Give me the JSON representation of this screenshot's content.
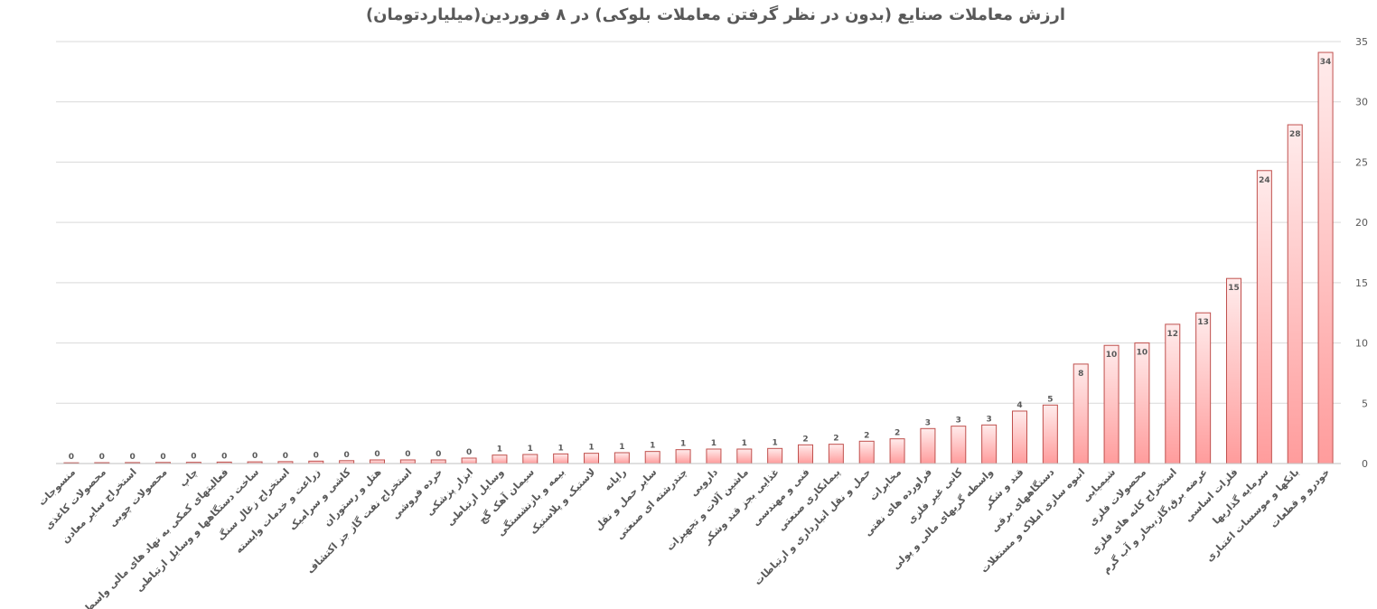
{
  "chart_data": {
    "type": "bar",
    "title": "ارزش معاملات صنایع (بدون در نظر گرفتن معاملات بلوکی) در ۸ فروردین(میلیاردتومان)",
    "ylim": [
      0,
      35
    ],
    "yticks": [
      0,
      5,
      10,
      15,
      20,
      25,
      30,
      35
    ],
    "y_axis_side": "right",
    "grid": true,
    "legend": "none",
    "bar_color": "#ff9c9c",
    "bar_edge_color": "#c0504d",
    "categories": [
      "منسوجات",
      "محصولات کاغذی",
      "استخراج سایر معادن",
      "محصولات چوبی",
      "چاپ",
      "فعالیتهای کمکی به نهاد های مالی واسط",
      "ساخت دستگاهها و وسایل ارتباطی",
      "استخراج زغال سنگ",
      "زراعت و خدمات وابسته",
      "کاشی و سرامیک",
      "هتل و رستوران",
      "استخراج نفت گاز جز اکتشاف",
      "خرده فروشی",
      "ابزار پزشکی",
      "وسایل ارتباطی",
      "سیمان آهک گچ",
      "بیمه و بازنشستگی",
      "لاستیک و پلاستیک",
      "رایانه",
      "سایر حمل و نقل",
      "چندرشته ای صنعتی",
      "دارویی",
      "ماشین آلات و تجهیزات",
      "غذایی بجز قند وشکر",
      "فنی و مهندسی",
      "پیمانکاری صنعتی",
      "حمل و نقل انبارداری و ارتباطات",
      "مخابرات",
      "فراورده های نفتی",
      "کانی غیر فلزی",
      "واسطه گریهای مالی و پولی",
      "قند و شکر",
      "دستگاههای برقی",
      "انبوه سازی املاک و مستغلات",
      "شیمیایی",
      "محصولات فلزی",
      "استخراج کانه های فلزی",
      "عرضه برق،گاز،بخار و آب گرم",
      "فلزات اساسی",
      "سرمایه گذاریها",
      "بانکها و موسسات اعتباری",
      "خودرو و قطعات"
    ],
    "values": [
      0.05,
      0.07,
      0.08,
      0.09,
      0.1,
      0.12,
      0.14,
      0.16,
      0.2,
      0.24,
      0.3,
      0.3,
      0.3,
      0.45,
      0.7,
      0.75,
      0.8,
      0.85,
      0.9,
      1.0,
      1.15,
      1.2,
      1.2,
      1.25,
      1.55,
      1.6,
      1.85,
      2.05,
      2.9,
      3.1,
      3.2,
      4.35,
      4.85,
      8.25,
      9.8,
      10.0,
      11.55,
      12.5,
      15.35,
      24.3,
      28.1,
      34.1
    ],
    "data_labels": [
      "0",
      "0",
      "0",
      "0",
      "0",
      "0",
      "0",
      "0",
      "0",
      "0",
      "0",
      "0",
      "0",
      "0",
      "1",
      "1",
      "1",
      "1",
      "1",
      "1",
      "1",
      "1",
      "1",
      "1",
      "2",
      "2",
      "2",
      "2",
      "3",
      "3",
      "3",
      "4",
      "5",
      "8",
      "10",
      "10",
      "12",
      "13",
      "15",
      "24",
      "28",
      "34"
    ]
  }
}
